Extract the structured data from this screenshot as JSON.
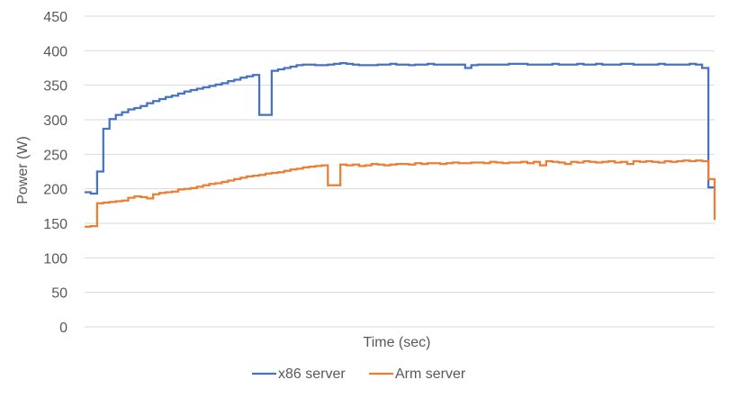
{
  "chart_data": {
    "type": "line",
    "xlabel": "Time (sec)",
    "ylabel": "Power (W)",
    "ylim": [
      0,
      450
    ],
    "yticks": [
      0,
      50,
      100,
      150,
      200,
      250,
      300,
      350,
      400,
      450
    ],
    "grid": true,
    "legend_position": "bottom",
    "x_tick_labels_shown": false,
    "series": [
      {
        "name": "x86 server",
        "color": "#4472c4",
        "points": [
          [
            0,
            195
          ],
          [
            1,
            193
          ],
          [
            2,
            225
          ],
          [
            3,
            287
          ],
          [
            4,
            301
          ],
          [
            5,
            307
          ],
          [
            6,
            311
          ],
          [
            7,
            315
          ],
          [
            8,
            317
          ],
          [
            9,
            320
          ],
          [
            10,
            324
          ],
          [
            11,
            327
          ],
          [
            12,
            330
          ],
          [
            13,
            333
          ],
          [
            14,
            335
          ],
          [
            15,
            338
          ],
          [
            16,
            341
          ],
          [
            17,
            343
          ],
          [
            18,
            345
          ],
          [
            19,
            347
          ],
          [
            20,
            349
          ],
          [
            21,
            351
          ],
          [
            22,
            353
          ],
          [
            23,
            356
          ],
          [
            24,
            358
          ],
          [
            25,
            361
          ],
          [
            26,
            363
          ],
          [
            27,
            365
          ],
          [
            28,
            307
          ],
          [
            29,
            307
          ],
          [
            30,
            371
          ],
          [
            31,
            373
          ],
          [
            32,
            375
          ],
          [
            33,
            377
          ],
          [
            34,
            379
          ],
          [
            35,
            380
          ],
          [
            36,
            380
          ],
          [
            37,
            379
          ],
          [
            38,
            379
          ],
          [
            39,
            380
          ],
          [
            40,
            381
          ],
          [
            41,
            382
          ],
          [
            42,
            381
          ],
          [
            43,
            380
          ],
          [
            44,
            379
          ],
          [
            45,
            379
          ],
          [
            46,
            379
          ],
          [
            47,
            380
          ],
          [
            48,
            380
          ],
          [
            49,
            381
          ],
          [
            50,
            380
          ],
          [
            51,
            380
          ],
          [
            52,
            379
          ],
          [
            53,
            380
          ],
          [
            54,
            380
          ],
          [
            55,
            381
          ],
          [
            56,
            380
          ],
          [
            57,
            380
          ],
          [
            58,
            380
          ],
          [
            59,
            380
          ],
          [
            60,
            380
          ],
          [
            61,
            375
          ],
          [
            62,
            379
          ],
          [
            63,
            380
          ],
          [
            64,
            380
          ],
          [
            65,
            380
          ],
          [
            66,
            380
          ],
          [
            67,
            380
          ],
          [
            68,
            381
          ],
          [
            69,
            381
          ],
          [
            70,
            381
          ],
          [
            71,
            380
          ],
          [
            72,
            380
          ],
          [
            73,
            380
          ],
          [
            74,
            380
          ],
          [
            75,
            381
          ],
          [
            76,
            380
          ],
          [
            77,
            380
          ],
          [
            78,
            380
          ],
          [
            79,
            381
          ],
          [
            80,
            380
          ],
          [
            81,
            380
          ],
          [
            82,
            381
          ],
          [
            83,
            380
          ],
          [
            84,
            380
          ],
          [
            85,
            380
          ],
          [
            86,
            381
          ],
          [
            87,
            381
          ],
          [
            88,
            380
          ],
          [
            89,
            380
          ],
          [
            90,
            380
          ],
          [
            91,
            380
          ],
          [
            92,
            381
          ],
          [
            93,
            380
          ],
          [
            94,
            380
          ],
          [
            95,
            380
          ],
          [
            96,
            380
          ],
          [
            97,
            381
          ],
          [
            98,
            380
          ],
          [
            99,
            375
          ],
          [
            100,
            202
          ],
          [
            101,
            200
          ]
        ]
      },
      {
        "name": "Arm server",
        "color": "#ed7d31",
        "points": [
          [
            0,
            145
          ],
          [
            1,
            146
          ],
          [
            2,
            179
          ],
          [
            3,
            180
          ],
          [
            4,
            181
          ],
          [
            5,
            182
          ],
          [
            6,
            183
          ],
          [
            7,
            187
          ],
          [
            8,
            189
          ],
          [
            9,
            188
          ],
          [
            10,
            186
          ],
          [
            11,
            192
          ],
          [
            12,
            194
          ],
          [
            13,
            195
          ],
          [
            14,
            196
          ],
          [
            15,
            199
          ],
          [
            16,
            200
          ],
          [
            17,
            201
          ],
          [
            18,
            203
          ],
          [
            19,
            205
          ],
          [
            20,
            207
          ],
          [
            21,
            208
          ],
          [
            22,
            210
          ],
          [
            23,
            212
          ],
          [
            24,
            214
          ],
          [
            25,
            216
          ],
          [
            26,
            218
          ],
          [
            27,
            219
          ],
          [
            28,
            220
          ],
          [
            29,
            222
          ],
          [
            30,
            223
          ],
          [
            31,
            224
          ],
          [
            32,
            226
          ],
          [
            33,
            228
          ],
          [
            34,
            229
          ],
          [
            35,
            231
          ],
          [
            36,
            232
          ],
          [
            37,
            233
          ],
          [
            38,
            234
          ],
          [
            39,
            205
          ],
          [
            40,
            205
          ],
          [
            41,
            235
          ],
          [
            42,
            234
          ],
          [
            43,
            235
          ],
          [
            44,
            233
          ],
          [
            45,
            234
          ],
          [
            46,
            236
          ],
          [
            47,
            235
          ],
          [
            48,
            234
          ],
          [
            49,
            235
          ],
          [
            50,
            236
          ],
          [
            51,
            236
          ],
          [
            52,
            235
          ],
          [
            53,
            237
          ],
          [
            54,
            236
          ],
          [
            55,
            237
          ],
          [
            56,
            237
          ],
          [
            57,
            236
          ],
          [
            58,
            237
          ],
          [
            59,
            238
          ],
          [
            60,
            237
          ],
          [
            61,
            237
          ],
          [
            62,
            238
          ],
          [
            63,
            238
          ],
          [
            64,
            237
          ],
          [
            65,
            239
          ],
          [
            66,
            238
          ],
          [
            67,
            237
          ],
          [
            68,
            238
          ],
          [
            69,
            238
          ],
          [
            70,
            239
          ],
          [
            71,
            237
          ],
          [
            72,
            239
          ],
          [
            73,
            234
          ],
          [
            74,
            240
          ],
          [
            75,
            239
          ],
          [
            76,
            238
          ],
          [
            77,
            236
          ],
          [
            78,
            239
          ],
          [
            79,
            238
          ],
          [
            80,
            240
          ],
          [
            81,
            239
          ],
          [
            82,
            238
          ],
          [
            83,
            239
          ],
          [
            84,
            240
          ],
          [
            85,
            238
          ],
          [
            86,
            239
          ],
          [
            87,
            236
          ],
          [
            88,
            240
          ],
          [
            89,
            239
          ],
          [
            90,
            240
          ],
          [
            91,
            239
          ],
          [
            92,
            238
          ],
          [
            93,
            240
          ],
          [
            94,
            239
          ],
          [
            95,
            240
          ],
          [
            96,
            241
          ],
          [
            97,
            240
          ],
          [
            98,
            241
          ],
          [
            99,
            240
          ],
          [
            100,
            214
          ],
          [
            101,
            155
          ]
        ]
      }
    ]
  }
}
